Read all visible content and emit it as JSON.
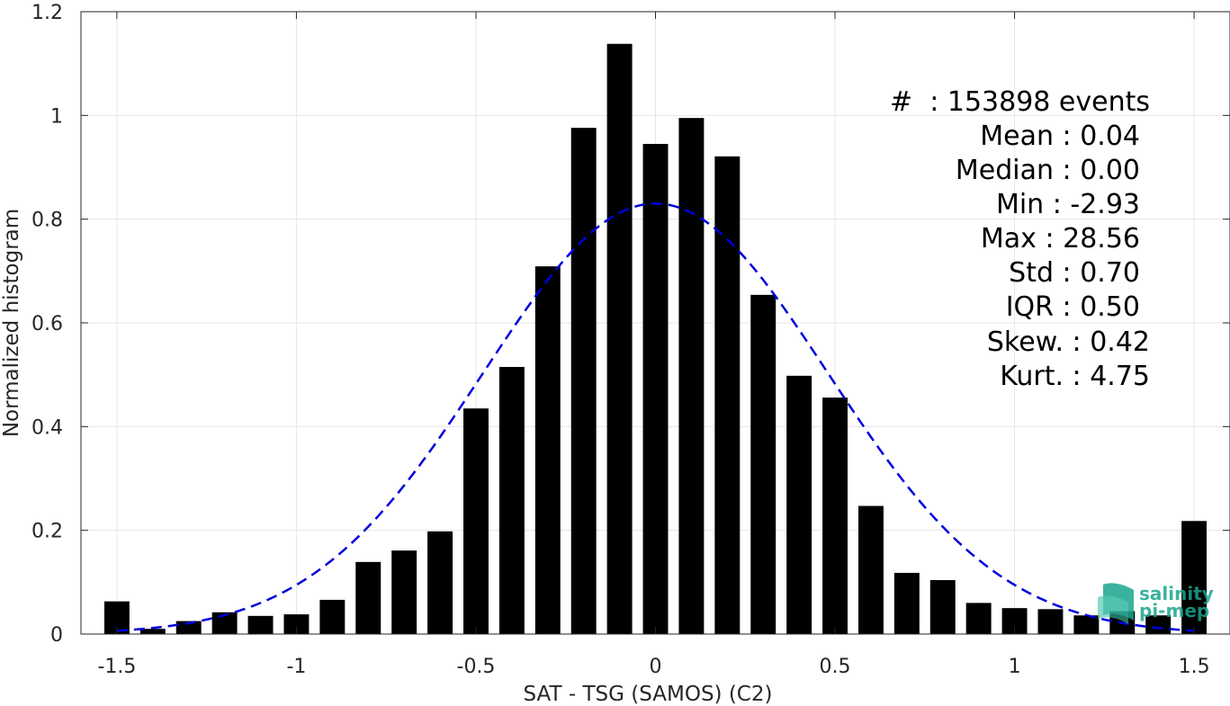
{
  "chart_data": {
    "type": "bar",
    "title": "",
    "xlabel": "SAT - TSG (SAMOS) (C2)",
    "ylabel": "Normalized histogram",
    "xlim": [
      -1.6,
      1.6
    ],
    "ylim": [
      0,
      1.2
    ],
    "grid": true,
    "xticks": [
      -1.5,
      -1,
      -0.5,
      0,
      0.5,
      1,
      1.5
    ],
    "xtick_labels": [
      "-1.5",
      "-1",
      "-0.5",
      "0",
      "0.5",
      "1",
      "1.5"
    ],
    "yticks": [
      0,
      0.2,
      0.4,
      0.6,
      0.8,
      1,
      1.2
    ],
    "ytick_labels": [
      "0",
      "0.2",
      "0.4",
      "0.6",
      "0.8",
      "1",
      "1.2"
    ],
    "bar_color": "#000000",
    "x": [
      -1.5,
      -1.4,
      -1.3,
      -1.2,
      -1.1,
      -1.0,
      -0.9,
      -0.8,
      -0.7,
      -0.6,
      -0.5,
      -0.4,
      -0.3,
      -0.2,
      -0.1,
      0.0,
      0.1,
      0.2,
      0.3,
      0.4,
      0.5,
      0.6,
      0.7,
      0.8,
      0.9,
      1.0,
      1.1,
      1.2,
      1.3,
      1.4,
      1.5
    ],
    "values": [
      0.063,
      0.01,
      0.025,
      0.042,
      0.035,
      0.038,
      0.066,
      0.139,
      0.161,
      0.198,
      0.435,
      0.515,
      0.709,
      0.976,
      1.138,
      0.945,
      0.995,
      0.921,
      0.654,
      0.498,
      0.456,
      0.247,
      0.118,
      0.104,
      0.06,
      0.05,
      0.048,
      0.036,
      0.044,
      0.036,
      0.218
    ],
    "fit_curve": {
      "style": "dashed",
      "color": "#0000dd",
      "mean": 0.0,
      "peak": 0.83,
      "std": 0.48,
      "x_range": [
        -1.5,
        1.5
      ]
    },
    "stats_box": [
      "#  : 153898 events",
      "Mean : 0.04",
      "Median : 0.00",
      "Min : -2.93",
      "Max : 28.56",
      "Std : 0.70",
      "IQR : 0.50",
      "Skew. : 0.42",
      "Kurt. : 4.75"
    ]
  },
  "logo": {
    "line1": "salinity",
    "line2": "pi-mep",
    "color": "#1aa58e"
  }
}
